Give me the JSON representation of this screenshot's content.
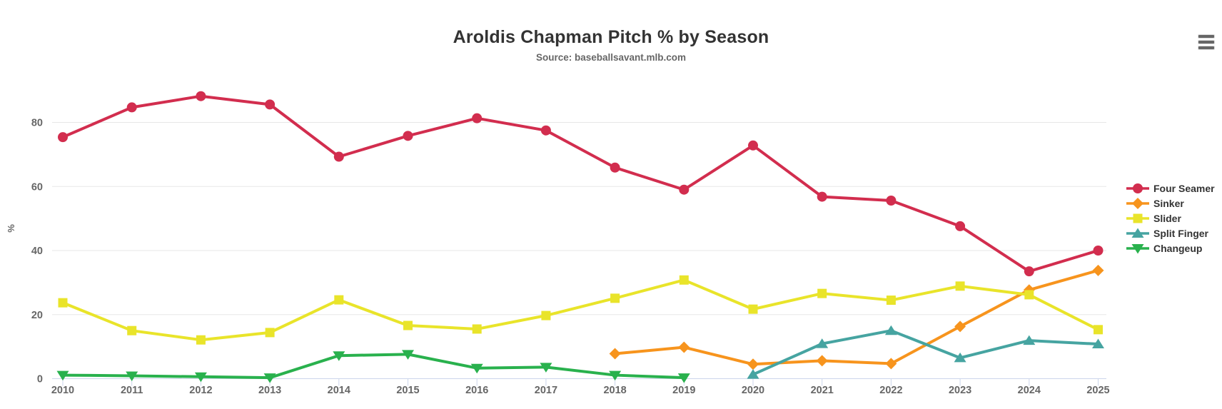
{
  "header": {
    "title": "Aroldis Chapman Pitch % by Season",
    "subtitle": "Source: baseballsavant.mlb.com"
  },
  "toolbar": {
    "context_menu_icon": "hamburger-menu-icon"
  },
  "chart_data": {
    "type": "line",
    "title": "Aroldis Chapman Pitch % by Season",
    "subtitle": "Source: baseballsavant.mlb.com",
    "xlabel": "",
    "ylabel": "%",
    "x": [
      2010,
      2011,
      2012,
      2013,
      2014,
      2015,
      2016,
      2017,
      2018,
      2019,
      2020,
      2021,
      2022,
      2023,
      2024,
      2025
    ],
    "yticks": [
      0,
      20,
      40,
      60,
      80
    ],
    "ylim": [
      0,
      94
    ],
    "grid": "horizontal",
    "legend_position": "right",
    "axis_line_color": "#ccd6eb",
    "grid_color": "#e7e7e7",
    "tick_label_color": "#666666",
    "series": [
      {
        "name": "Four Seamer",
        "color": "#d22d4e",
        "marker": "circle",
        "data": [
          [
            2010,
            75.4
          ],
          [
            2011,
            84.7
          ],
          [
            2012,
            88.2
          ],
          [
            2013,
            85.6
          ],
          [
            2014,
            69.3
          ],
          [
            2015,
            75.8
          ],
          [
            2016,
            81.3
          ],
          [
            2017,
            77.5
          ],
          [
            2018,
            65.9
          ],
          [
            2019,
            59.0
          ],
          [
            2020,
            72.8
          ],
          [
            2021,
            56.8
          ],
          [
            2022,
            55.6
          ],
          [
            2023,
            47.6
          ],
          [
            2024,
            33.5
          ],
          [
            2025,
            40.0
          ]
        ]
      },
      {
        "name": "Sinker",
        "color": "#f7941d",
        "marker": "diamond",
        "data": [
          [
            2018,
            7.8
          ],
          [
            2019,
            9.8
          ],
          [
            2020,
            4.5
          ],
          [
            2021,
            5.6
          ],
          [
            2022,
            4.7
          ],
          [
            2023,
            16.3
          ],
          [
            2024,
            27.7
          ],
          [
            2025,
            33.8
          ]
        ]
      },
      {
        "name": "Slider",
        "color": "#e9e42a",
        "marker": "square",
        "data": [
          [
            2010,
            23.7
          ],
          [
            2011,
            15.0
          ],
          [
            2012,
            12.1
          ],
          [
            2013,
            14.4
          ],
          [
            2014,
            24.6
          ],
          [
            2015,
            16.6
          ],
          [
            2016,
            15.5
          ],
          [
            2017,
            19.7
          ],
          [
            2018,
            25.1
          ],
          [
            2019,
            30.8
          ],
          [
            2020,
            21.7
          ],
          [
            2021,
            26.6
          ],
          [
            2022,
            24.5
          ],
          [
            2023,
            28.9
          ],
          [
            2024,
            26.2
          ],
          [
            2025,
            15.3
          ]
        ]
      },
      {
        "name": "Split Finger",
        "color": "#46a4a1",
        "marker": "triangle-up",
        "data": [
          [
            2020,
            1.3
          ],
          [
            2021,
            10.9
          ],
          [
            2022,
            15.0
          ],
          [
            2023,
            6.5
          ],
          [
            2024,
            11.9
          ],
          [
            2025,
            10.8
          ]
        ]
      },
      {
        "name": "Changeup",
        "color": "#29b14d",
        "marker": "triangle-down",
        "data": [
          [
            2010,
            1.1
          ],
          [
            2011,
            0.9
          ],
          [
            2012,
            0.6
          ],
          [
            2013,
            0.3
          ],
          [
            2014,
            7.2
          ],
          [
            2015,
            7.6
          ],
          [
            2016,
            3.3
          ],
          [
            2017,
            3.6
          ],
          [
            2018,
            1.1
          ],
          [
            2019,
            0.3
          ]
        ]
      }
    ]
  }
}
